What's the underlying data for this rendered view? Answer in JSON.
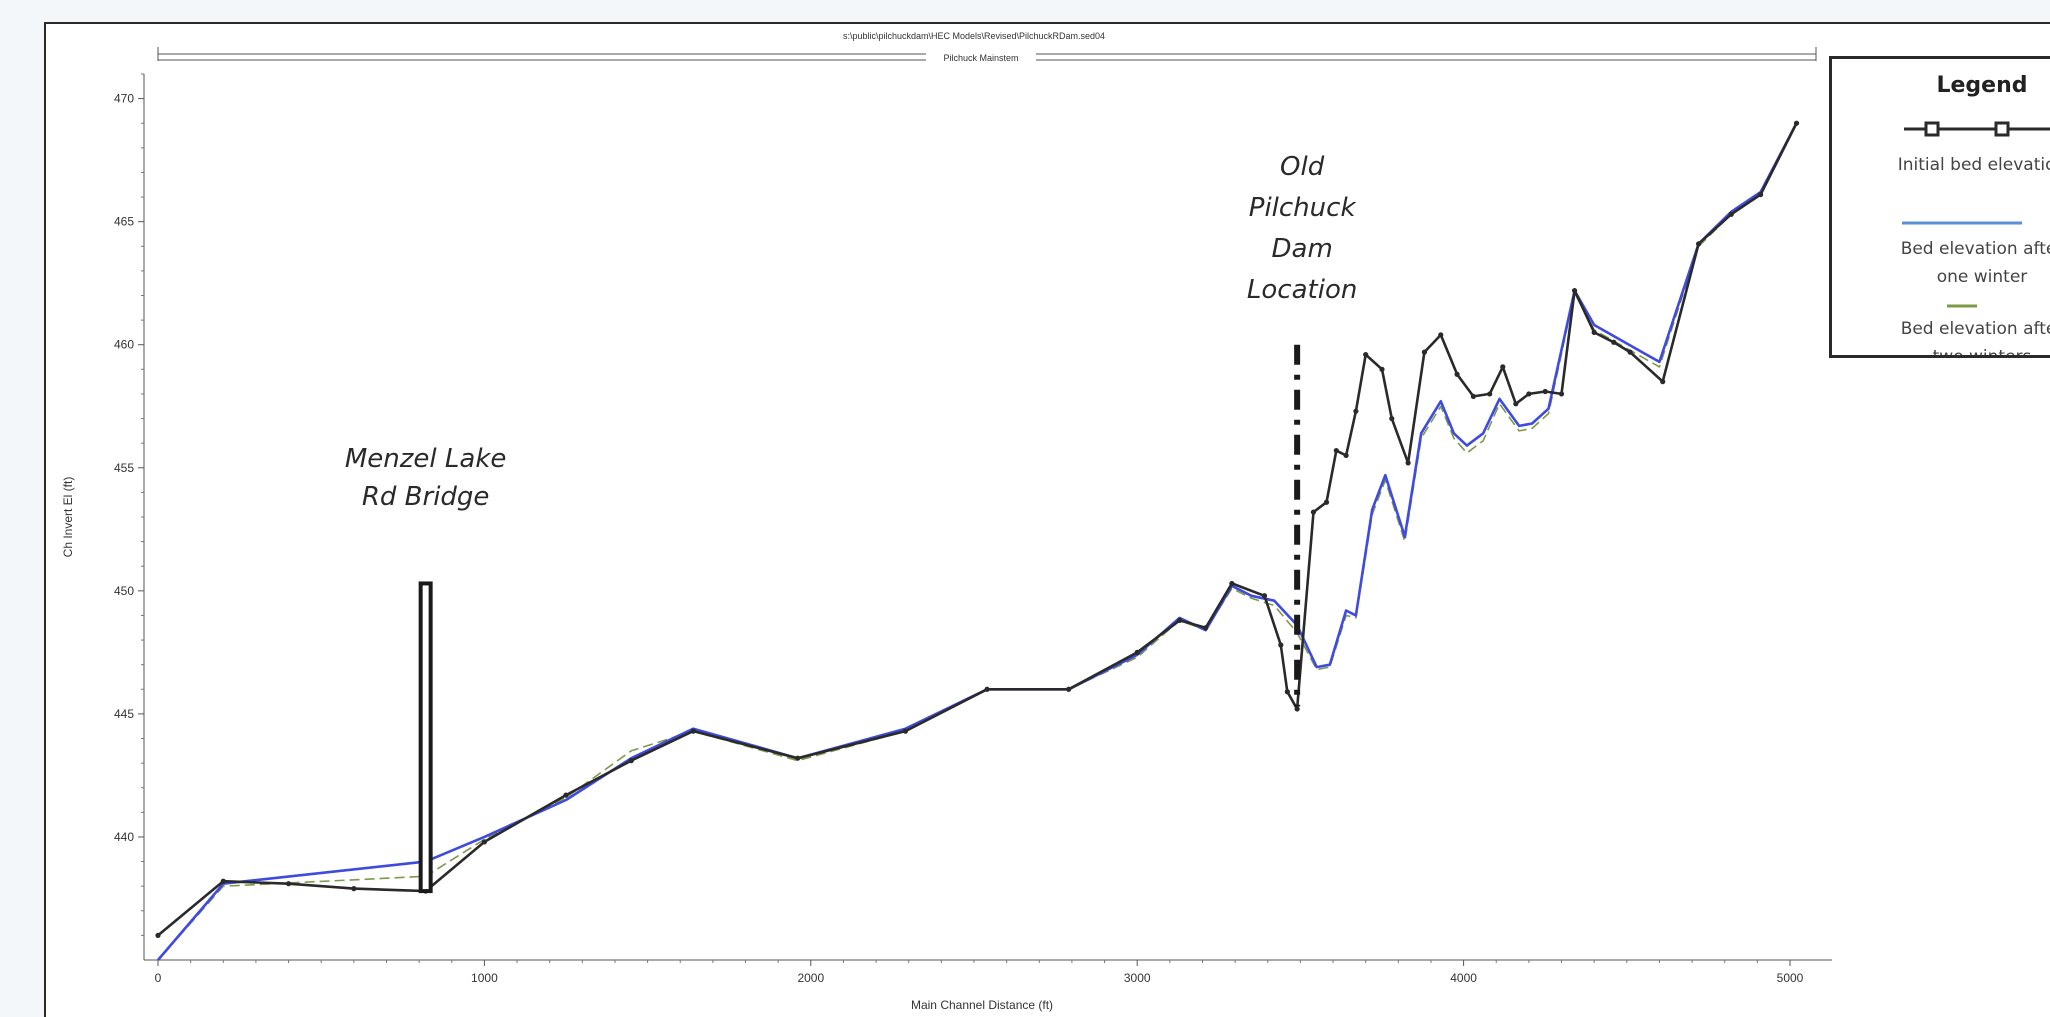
{
  "chart_data": {
    "type": "line",
    "header_path": "s:\\public\\pilchuckdam\\HEC Models\\Revised\\PilchuckRDam.sed04",
    "header_reach": "Pilchuck Mainstem",
    "xlabel": "Main Channel Distance (ft)",
    "ylabel": "Ch Invert El (ft)",
    "xlim": [
      0,
      5050
    ],
    "ylim": [
      435,
      471
    ],
    "x_ticks": [
      0,
      1000,
      2000,
      3000,
      4000,
      5000
    ],
    "y_ticks": [
      440,
      445,
      450,
      455,
      460,
      465,
      470
    ],
    "grid": false,
    "legend_position": "right",
    "legend": {
      "title": "Legend",
      "entries": [
        {
          "text": "Initial bed elevation"
        },
        {
          "text": "Bed elevation after\none winter"
        },
        {
          "text": "Bed elevation after\ntwo winters"
        }
      ]
    },
    "annotations": [
      {
        "text": "Menzel Lake\nRd Bridge",
        "x": 820,
        "y": 450.3
      },
      {
        "text": "Old\nPilchuck\nDam\nLocation",
        "x": 3490,
        "y": 460.0
      }
    ],
    "series": [
      {
        "name": "Initial bed elevation",
        "color": "#2a2a2a",
        "x": [
          0,
          200,
          400,
          600,
          820,
          1000,
          1250,
          1450,
          1640,
          1960,
          2290,
          2540,
          2790,
          3000,
          3130,
          3210,
          3290,
          3390,
          3440,
          3460,
          3490,
          3540,
          3580,
          3610,
          3640,
          3670,
          3700,
          3750,
          3780,
          3830,
          3880,
          3930,
          3980,
          4030,
          4080,
          4120,
          4160,
          4200,
          4250,
          4300,
          4340,
          4400,
          4460,
          4510,
          4610,
          4720,
          4820,
          4910,
          5020
        ],
        "y": [
          436.0,
          438.2,
          438.1,
          437.9,
          437.8,
          439.8,
          441.7,
          443.1,
          444.3,
          443.2,
          444.3,
          446.0,
          446.0,
          447.5,
          448.8,
          448.5,
          450.3,
          449.8,
          447.8,
          445.9,
          445.2,
          453.2,
          453.6,
          455.7,
          455.5,
          457.3,
          459.6,
          459.0,
          457.0,
          455.2,
          459.7,
          460.4,
          458.8,
          457.9,
          458.0,
          459.1,
          457.6,
          458.0,
          458.1,
          458.0,
          462.2,
          460.5,
          460.1,
          459.7,
          458.5,
          464.1,
          465.3,
          466.1,
          469.0
        ]
      },
      {
        "name": "Bed elevation after one winter",
        "color": "#3e4ae0",
        "x": [
          0,
          200,
          820,
          1000,
          1250,
          1450,
          1640,
          1960,
          2290,
          2540,
          2790,
          3000,
          3130,
          3210,
          3290,
          3350,
          3420,
          3490,
          3550,
          3590,
          3640,
          3670,
          3720,
          3760,
          3820,
          3870,
          3930,
          3970,
          4010,
          4060,
          4110,
          4170,
          4210,
          4260,
          4340,
          4400,
          4600,
          4720,
          4820,
          4910,
          5020
        ],
        "y": [
          435.0,
          438.1,
          439.0,
          440.0,
          441.5,
          443.2,
          444.4,
          443.2,
          444.4,
          446.0,
          446.0,
          447.4,
          448.9,
          448.4,
          450.2,
          449.8,
          449.6,
          448.6,
          446.9,
          447.0,
          449.2,
          449.0,
          453.3,
          454.7,
          452.2,
          456.4,
          457.7,
          456.4,
          455.9,
          456.4,
          457.8,
          456.7,
          456.8,
          457.4,
          462.2,
          460.8,
          459.3,
          464.1,
          465.4,
          466.2,
          469.0
        ]
      },
      {
        "name": "Bed elevation after two winters",
        "color": "#7d9a4a",
        "x": [
          0,
          200,
          820,
          1000,
          1250,
          1450,
          1640,
          1960,
          2290,
          2540,
          2790,
          3000,
          3130,
          3210,
          3290,
          3350,
          3420,
          3490,
          3550,
          3590,
          3640,
          3670,
          3720,
          3760,
          3820,
          3870,
          3930,
          3970,
          4010,
          4060,
          4110,
          4170,
          4210,
          4260,
          4340,
          4400,
          4600,
          4720,
          4820,
          4910,
          5020
        ],
        "y": [
          435.0,
          438.0,
          438.4,
          439.9,
          441.6,
          443.5,
          444.3,
          443.1,
          444.3,
          446.0,
          446.0,
          447.3,
          448.8,
          448.4,
          450.1,
          449.7,
          449.4,
          448.3,
          446.8,
          446.9,
          449.0,
          448.9,
          453.1,
          454.5,
          452.0,
          456.2,
          457.5,
          456.2,
          455.6,
          456.1,
          457.6,
          456.5,
          456.6,
          457.2,
          462.1,
          460.6,
          459.1,
          464.0,
          465.3,
          466.1,
          469.0
        ]
      }
    ]
  }
}
